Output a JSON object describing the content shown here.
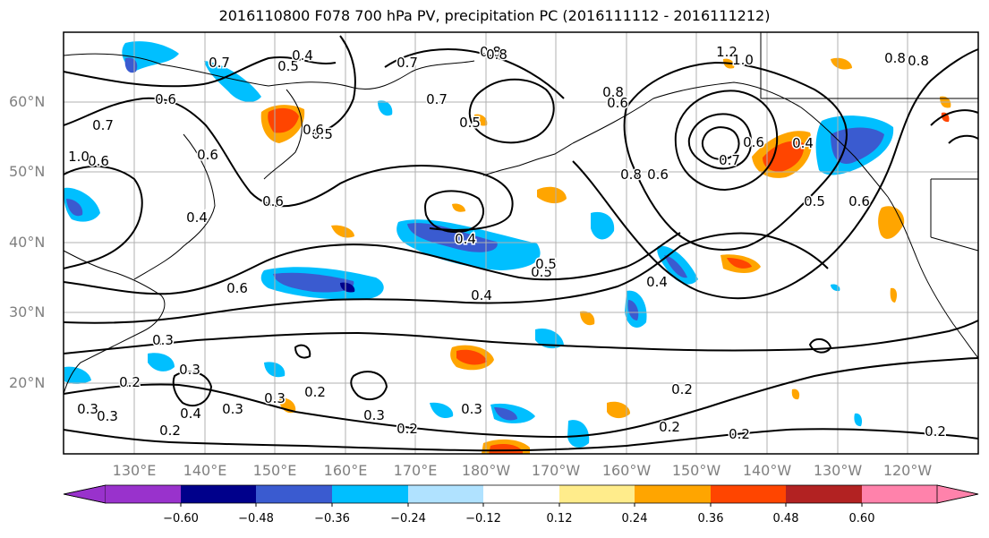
{
  "title": "2016110800 F078 700 hPa PV, precipitation PC (2016111112 - 2016111212)",
  "lat_labels": [
    "60°N",
    "50°N",
    "40°N",
    "30°N",
    "20°N"
  ],
  "lon_labels": [
    "130°E",
    "140°E",
    "150°E",
    "160°E",
    "170°E",
    "180°W",
    "170°W",
    "160°W",
    "150°W",
    "140°W",
    "130°W",
    "120°W"
  ],
  "colorbar": {
    "ticks": [
      "−0.60",
      "−0.48",
      "−0.36",
      "−0.24",
      "−0.12",
      "0.12",
      "0.24",
      "0.36",
      "0.48",
      "0.60"
    ],
    "colors": [
      "#9932cc",
      "#00008b",
      "#3a5bd0",
      "#00bfff",
      "#b0e2ff",
      "#ffffff",
      "#ffec8b",
      "#ffa500",
      "#ff4500",
      "#b22222",
      "#ff82ab"
    ]
  },
  "contour_labels": [
    {
      "text": "0.7"
    },
    {
      "text": "0.5"
    },
    {
      "text": "0.4"
    },
    {
      "text": "0.6"
    },
    {
      "text": "0.7"
    },
    {
      "text": "0.6"
    },
    {
      "text": "0.7"
    },
    {
      "text": "1.0"
    },
    {
      "text": "0.8"
    },
    {
      "text": "0.8"
    },
    {
      "text": "0.6"
    },
    {
      "text": "0.4"
    },
    {
      "text": "0.5"
    },
    {
      "text": "0.6"
    },
    {
      "text": "0.5"
    },
    {
      "text": "0.7"
    },
    {
      "text": "0.6"
    },
    {
      "text": "0.8"
    },
    {
      "text": "1.2"
    },
    {
      "text": "1.0"
    },
    {
      "text": "0.8"
    },
    {
      "text": "0.6"
    },
    {
      "text": "0.5"
    },
    {
      "text": "0.8"
    },
    {
      "text": "0.6"
    },
    {
      "text": "0.7"
    },
    {
      "text": "0.6"
    },
    {
      "text": "0.4"
    },
    {
      "text": "0.4"
    },
    {
      "text": "0.5"
    },
    {
      "text": "0.6"
    },
    {
      "text": "0.5"
    },
    {
      "text": "0.4"
    },
    {
      "text": "0.4"
    },
    {
      "text": "0.6"
    },
    {
      "text": "0.3"
    },
    {
      "text": "0.3"
    },
    {
      "text": "0.2"
    },
    {
      "text": "0.3"
    },
    {
      "text": "0.4"
    },
    {
      "text": "0.3"
    },
    {
      "text": "0.3"
    },
    {
      "text": "0.2"
    },
    {
      "text": "0.3"
    },
    {
      "text": "0.2"
    },
    {
      "text": "0.3"
    },
    {
      "text": "0.2"
    },
    {
      "text": "0.2"
    },
    {
      "text": "0.2"
    },
    {
      "text": "0.2"
    },
    {
      "text": "0.2"
    },
    {
      "text": "0.3"
    },
    {
      "text": "0.8"
    }
  ]
}
